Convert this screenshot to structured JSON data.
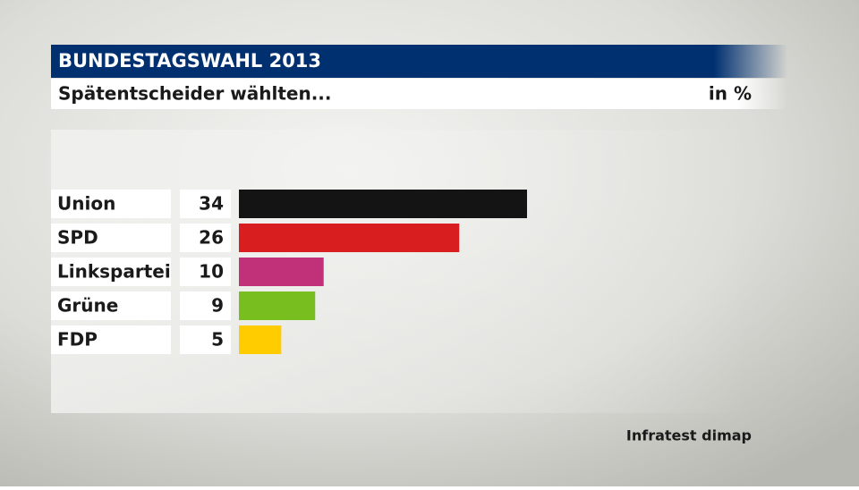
{
  "chart_data": {
    "type": "bar",
    "orientation": "horizontal",
    "title": "BUNDESTAGSWAHL 2013",
    "subtitle": "Spätentscheider wählten...",
    "unit": "in %",
    "source": "Infratest dimap",
    "categories": [
      "Union",
      "SPD",
      "Linkspartei",
      "Grüne",
      "FDP"
    ],
    "values": [
      34,
      26,
      10,
      9,
      5
    ],
    "colors": [
      "#141414",
      "#d81e1e",
      "#c0317a",
      "#78be1e",
      "#ffcc00"
    ]
  }
}
